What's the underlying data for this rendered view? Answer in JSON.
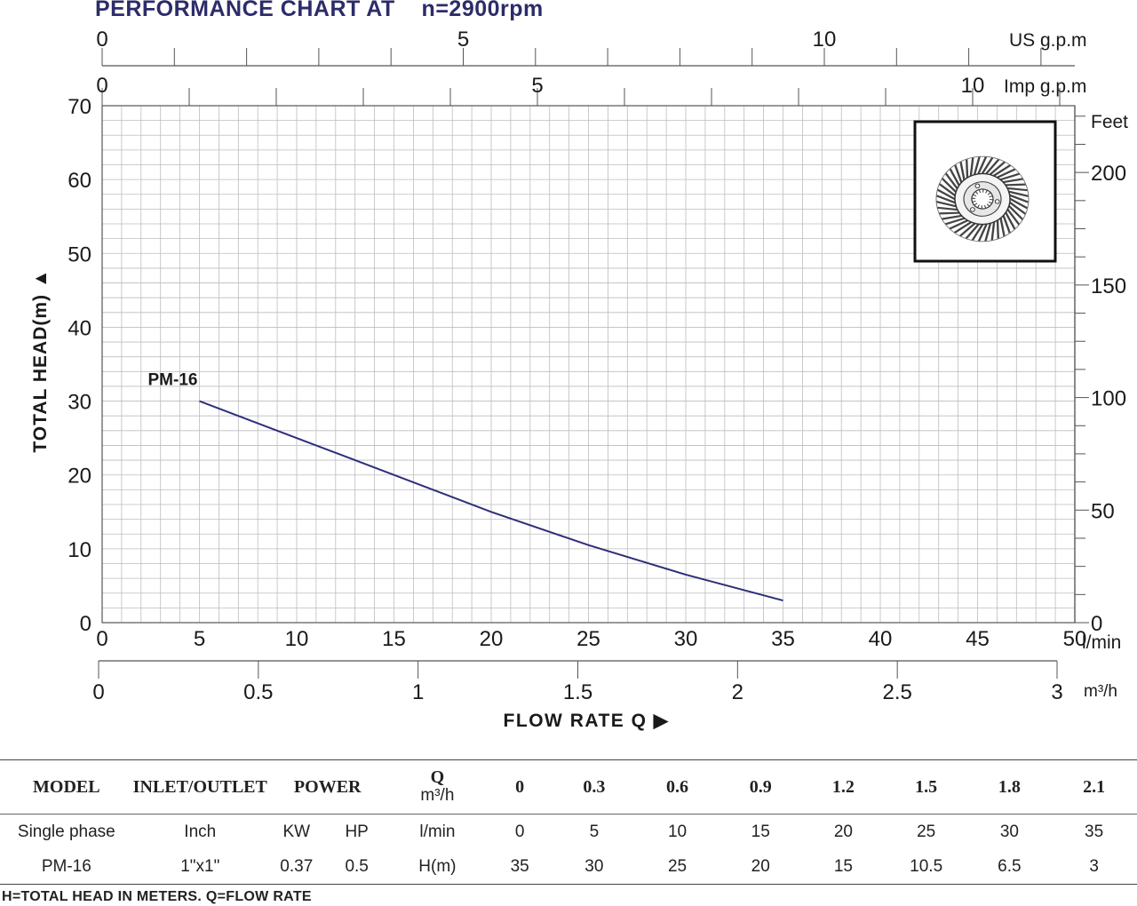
{
  "header": {
    "title": "PERFORMANCE CHART AT    n=2900rpm"
  },
  "chart_data": {
    "type": "line",
    "series": [
      {
        "name": "PM-16",
        "x": [
          5,
          10,
          15,
          20,
          25,
          30,
          35
        ],
        "y": [
          30,
          25,
          20,
          15,
          10.5,
          6.5,
          3
        ]
      }
    ],
    "xlim": [
      0,
      50
    ],
    "ylim": [
      0,
      70
    ],
    "grid": true,
    "xlabel": "FLOW RATE Q",
    "ylabel": "TOTAL HEAD(m)",
    "x_axis_primary": {
      "unit": "l/min",
      "ticks": [
        "0",
        "5",
        "10",
        "15",
        "20",
        "25",
        "30",
        "35",
        "40",
        "45",
        "50"
      ]
    },
    "x_axis_m3h": {
      "unit": "m³/h",
      "ticks": [
        "0",
        "0.5",
        "1",
        "1.5",
        "2",
        "2.5",
        "3"
      ]
    },
    "top_axis_us": {
      "unit": "US g.p.m",
      "ticks": [
        "0",
        "5",
        "10"
      ]
    },
    "top_axis_imp": {
      "unit": "Imp g.p.m",
      "ticks": [
        "0",
        "5",
        "10"
      ]
    },
    "y_axis_primary": {
      "ticks": [
        "0",
        "10",
        "20",
        "30",
        "40",
        "50",
        "60",
        "70"
      ]
    },
    "y_axis_feet": {
      "unit": "Feet",
      "ticks": [
        "0",
        "50",
        "100",
        "150",
        "200"
      ]
    },
    "colors": {
      "curve": "#2e2e7a",
      "grid": "#b8b8b8",
      "title": "#2c2c6a"
    }
  },
  "impeller_image": {
    "icon": "impeller-icon"
  },
  "table": {
    "header": {
      "model": "MODEL",
      "inlet_outlet": "INLET/OUTLET",
      "power": "POWER",
      "q_label": "Q",
      "q_unit": "m³/h",
      "q_values": [
        "0",
        "0.3",
        "0.6",
        "0.9",
        "1.2",
        "1.5",
        "1.8",
        "2.1"
      ]
    },
    "row_units": {
      "model": "Single phase",
      "inlet_outlet": "Inch",
      "kw": "KW",
      "hp": "HP",
      "flow_label": "l/min",
      "values": [
        "0",
        "5",
        "10",
        "15",
        "20",
        "25",
        "30",
        "35"
      ]
    },
    "row_model": {
      "model": "PM-16",
      "inlet_outlet": "1\"x1\"",
      "kw": "0.37",
      "hp": "0.5",
      "head_label": "H(m)",
      "values": [
        "35",
        "30",
        "25",
        "20",
        "15",
        "10.5",
        "6.5",
        "3"
      ]
    }
  },
  "footer": {
    "note": "H=TOTAL HEAD IN METERS.  Q=FLOW RATE"
  }
}
